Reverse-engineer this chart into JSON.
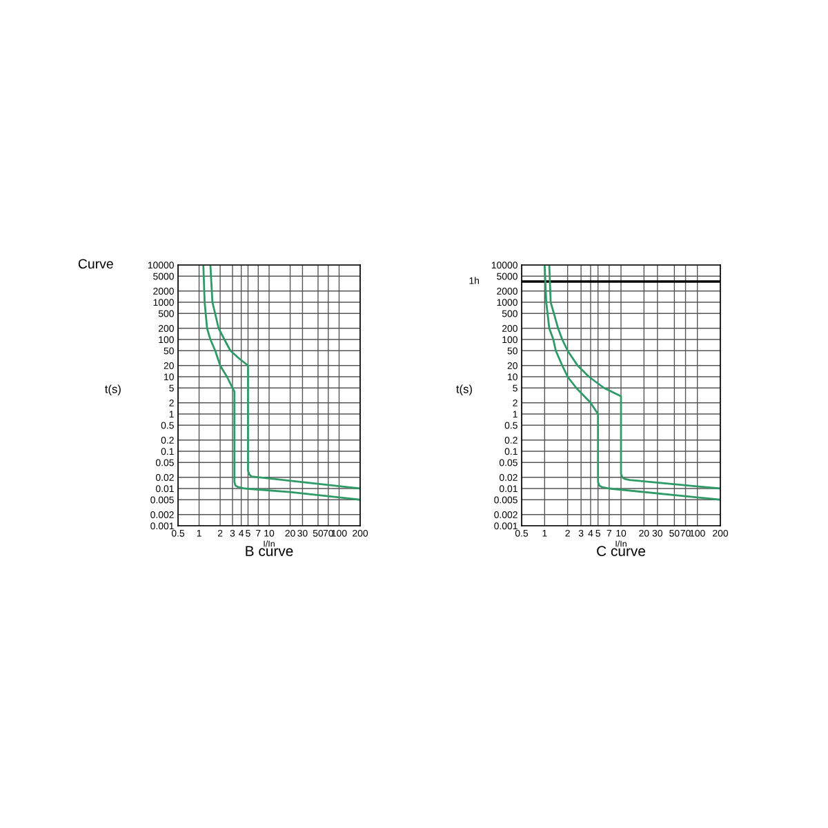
{
  "chart_data": [
    {
      "type": "line",
      "title": "B curve",
      "xlabel": "I/In",
      "ylabel": "t(s)",
      "annotations": [
        "Curve"
      ],
      "log": "xy",
      "grid": true,
      "marker": "none",
      "line_style": "solid",
      "xlim": [
        0.5,
        200
      ],
      "ylim": [
        0.001,
        10000
      ],
      "xticks": [
        0.5,
        1,
        2,
        3,
        4,
        5,
        7,
        10,
        20,
        30,
        50,
        70,
        100,
        200
      ],
      "yticks": [
        10000,
        5000,
        2000,
        1000,
        500,
        200,
        100,
        50,
        20,
        10,
        5,
        2,
        1,
        0.5,
        0.2,
        0.1,
        0.05,
        0.02,
        0.01,
        0.005,
        0.002,
        0.001
      ],
      "series": [
        {
          "color": "#2e9a66",
          "x": [
            1.15,
            1.2,
            1.3,
            1.45,
            1.7,
            2,
            2.5,
            3,
            3.2,
            3.2,
            3.3,
            3.6,
            4.5,
            20,
            200
          ],
          "values": [
            10000,
            1000,
            200,
            100,
            50,
            20,
            10,
            5,
            4,
            0.015,
            0.012,
            0.011,
            0.01,
            0.008,
            0.005
          ]
        },
        {
          "color": "#2e9a66",
          "x": [
            1.45,
            1.55,
            1.9,
            2.3,
            2.8,
            3.8,
            5,
            5,
            5.2,
            5.6,
            7,
            200
          ],
          "values": [
            10000,
            1000,
            200,
            100,
            50,
            30,
            20,
            0.03,
            0.024,
            0.021,
            0.02,
            0.01
          ]
        }
      ]
    },
    {
      "type": "line",
      "title": "C curve",
      "xlabel": "I/In",
      "ylabel": "t(s)",
      "log": "xy",
      "grid": true,
      "marker": "none",
      "line_style": "solid",
      "xlim": [
        0.5,
        200
      ],
      "ylim": [
        0.001,
        10000
      ],
      "xticks": [
        0.5,
        1,
        2,
        3,
        4,
        5,
        7,
        10,
        20,
        30,
        50,
        70,
        100,
        200
      ],
      "ref_lines": [
        {
          "axis": "y",
          "value": 3600,
          "label": "1h",
          "color": "#000000"
        }
      ],
      "yticks": [
        10000,
        5000,
        2000,
        1000,
        500,
        200,
        100,
        50,
        20,
        10,
        5,
        2,
        1,
        0.5,
        0.2,
        0.1,
        0.05,
        0.02,
        0.01,
        0.005,
        0.002,
        0.001
      ],
      "series": [
        {
          "color": "#2e9a66",
          "x": [
            1.0,
            1.05,
            1.15,
            1.3,
            1.4,
            1.7,
            2,
            2.6,
            4,
            5,
            5,
            5.2,
            5.6,
            7,
            200
          ],
          "values": [
            10000,
            1000,
            200,
            100,
            50,
            20,
            10,
            5,
            2,
            1,
            0.015,
            0.012,
            0.011,
            0.01,
            0.005
          ]
        },
        {
          "color": "#2e9a66",
          "x": [
            1.15,
            1.2,
            1.5,
            1.7,
            2,
            2.7,
            3.8,
            6,
            10,
            10,
            10.4,
            11.2,
            13,
            200
          ],
          "values": [
            10000,
            1000,
            200,
            100,
            50,
            20,
            10,
            5,
            3,
            0.025,
            0.02,
            0.018,
            0.017,
            0.01
          ]
        }
      ]
    }
  ]
}
